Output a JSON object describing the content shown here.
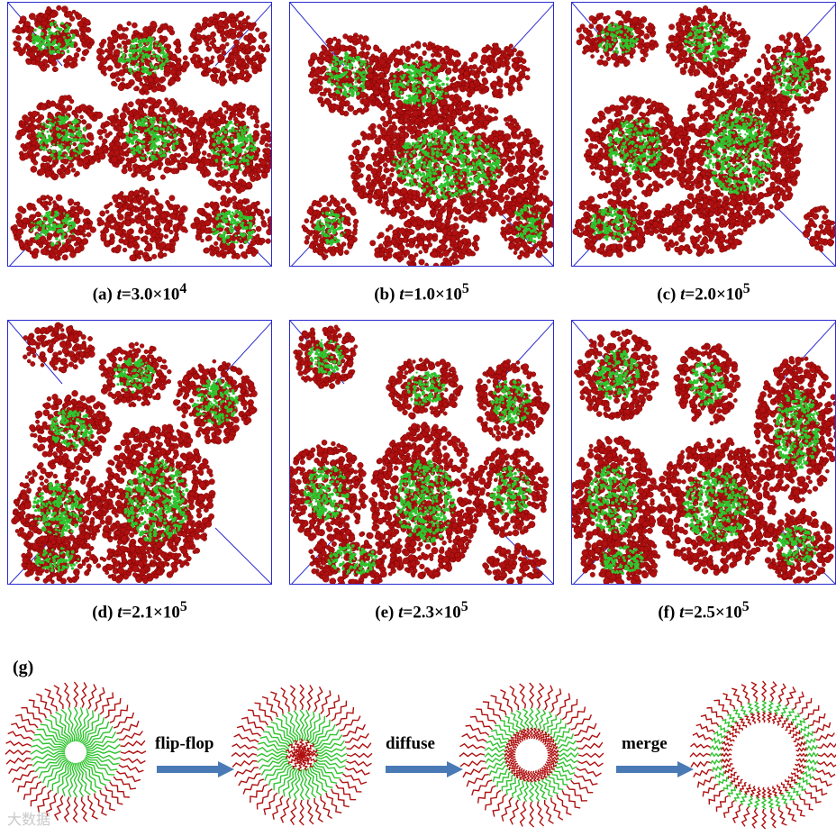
{
  "panels": [
    {
      "letter": "(a)",
      "t": "t",
      "value": "=3.0×10",
      "exp": "4"
    },
    {
      "letter": "(b)",
      "t": "t",
      "value": "=1.0×10",
      "exp": "5"
    },
    {
      "letter": "(c)",
      "t": "t",
      "value": "=2.0×10",
      "exp": "5"
    },
    {
      "letter": "(d)",
      "t": "t",
      "value": "=2.1×10",
      "exp": "5"
    },
    {
      "letter": "(e)",
      "t": "t",
      "value": "=2.3×10",
      "exp": "5"
    },
    {
      "letter": "(f)",
      "t": "t",
      "value": "=2.5×10",
      "exp": "5"
    }
  ],
  "schematic": {
    "label": "(g)",
    "steps": [
      "flip-flop",
      "diffuse",
      "merge"
    ]
  },
  "colors": {
    "bead_red": "#b01010",
    "bead_green": "#2ec42e",
    "box_blue": "#2b2bd0",
    "arrow_blue": "#4a7ab5"
  },
  "watermark": "大数据"
}
